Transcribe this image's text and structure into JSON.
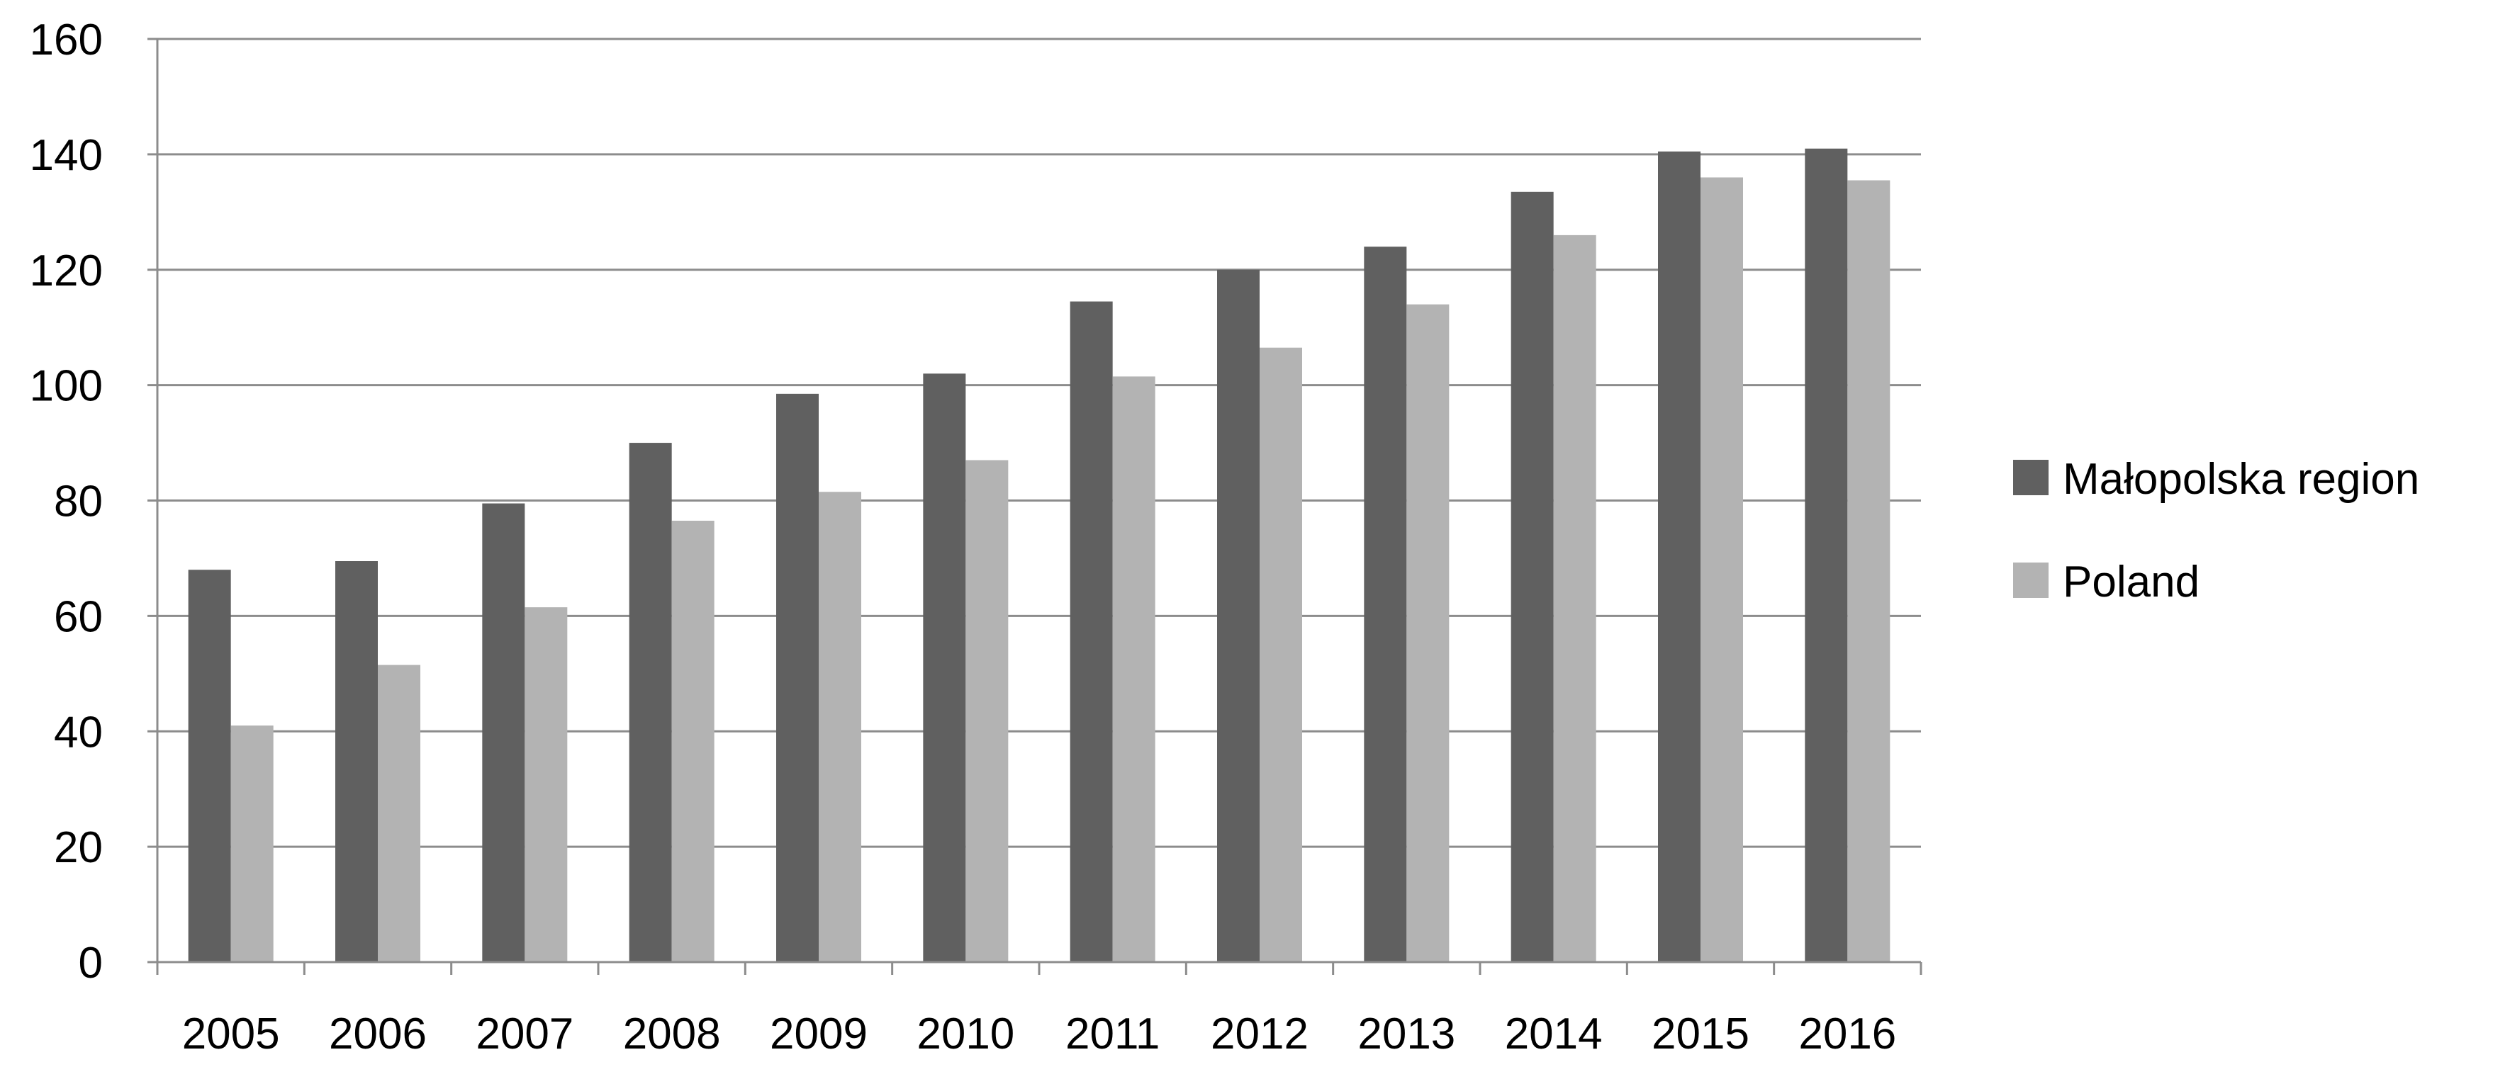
{
  "chart_data": {
    "type": "bar",
    "categories": [
      "2005",
      "2006",
      "2007",
      "2008",
      "2009",
      "2010",
      "2011",
      "2012",
      "2013",
      "2014",
      "2015",
      "2016"
    ],
    "series": [
      {
        "name": "Małopolska region",
        "color": "#606060",
        "values": [
          68,
          69.5,
          79.5,
          90,
          98.5,
          102,
          114.5,
          120,
          124,
          133.5,
          140.5,
          141
        ]
      },
      {
        "name": "Poland",
        "color": "#b3b3b3",
        "values": [
          41,
          51.5,
          61.5,
          76.5,
          81.5,
          87,
          101.5,
          106.5,
          114,
          126,
          136,
          135.5
        ]
      }
    ],
    "ylim": [
      0,
      160
    ],
    "yticks": [
      "0",
      "20",
      "40",
      "60",
      "80",
      "100",
      "120",
      "140",
      "160"
    ],
    "grid": true,
    "legend": "right",
    "title": "",
    "xlabel": "",
    "ylabel": ""
  }
}
